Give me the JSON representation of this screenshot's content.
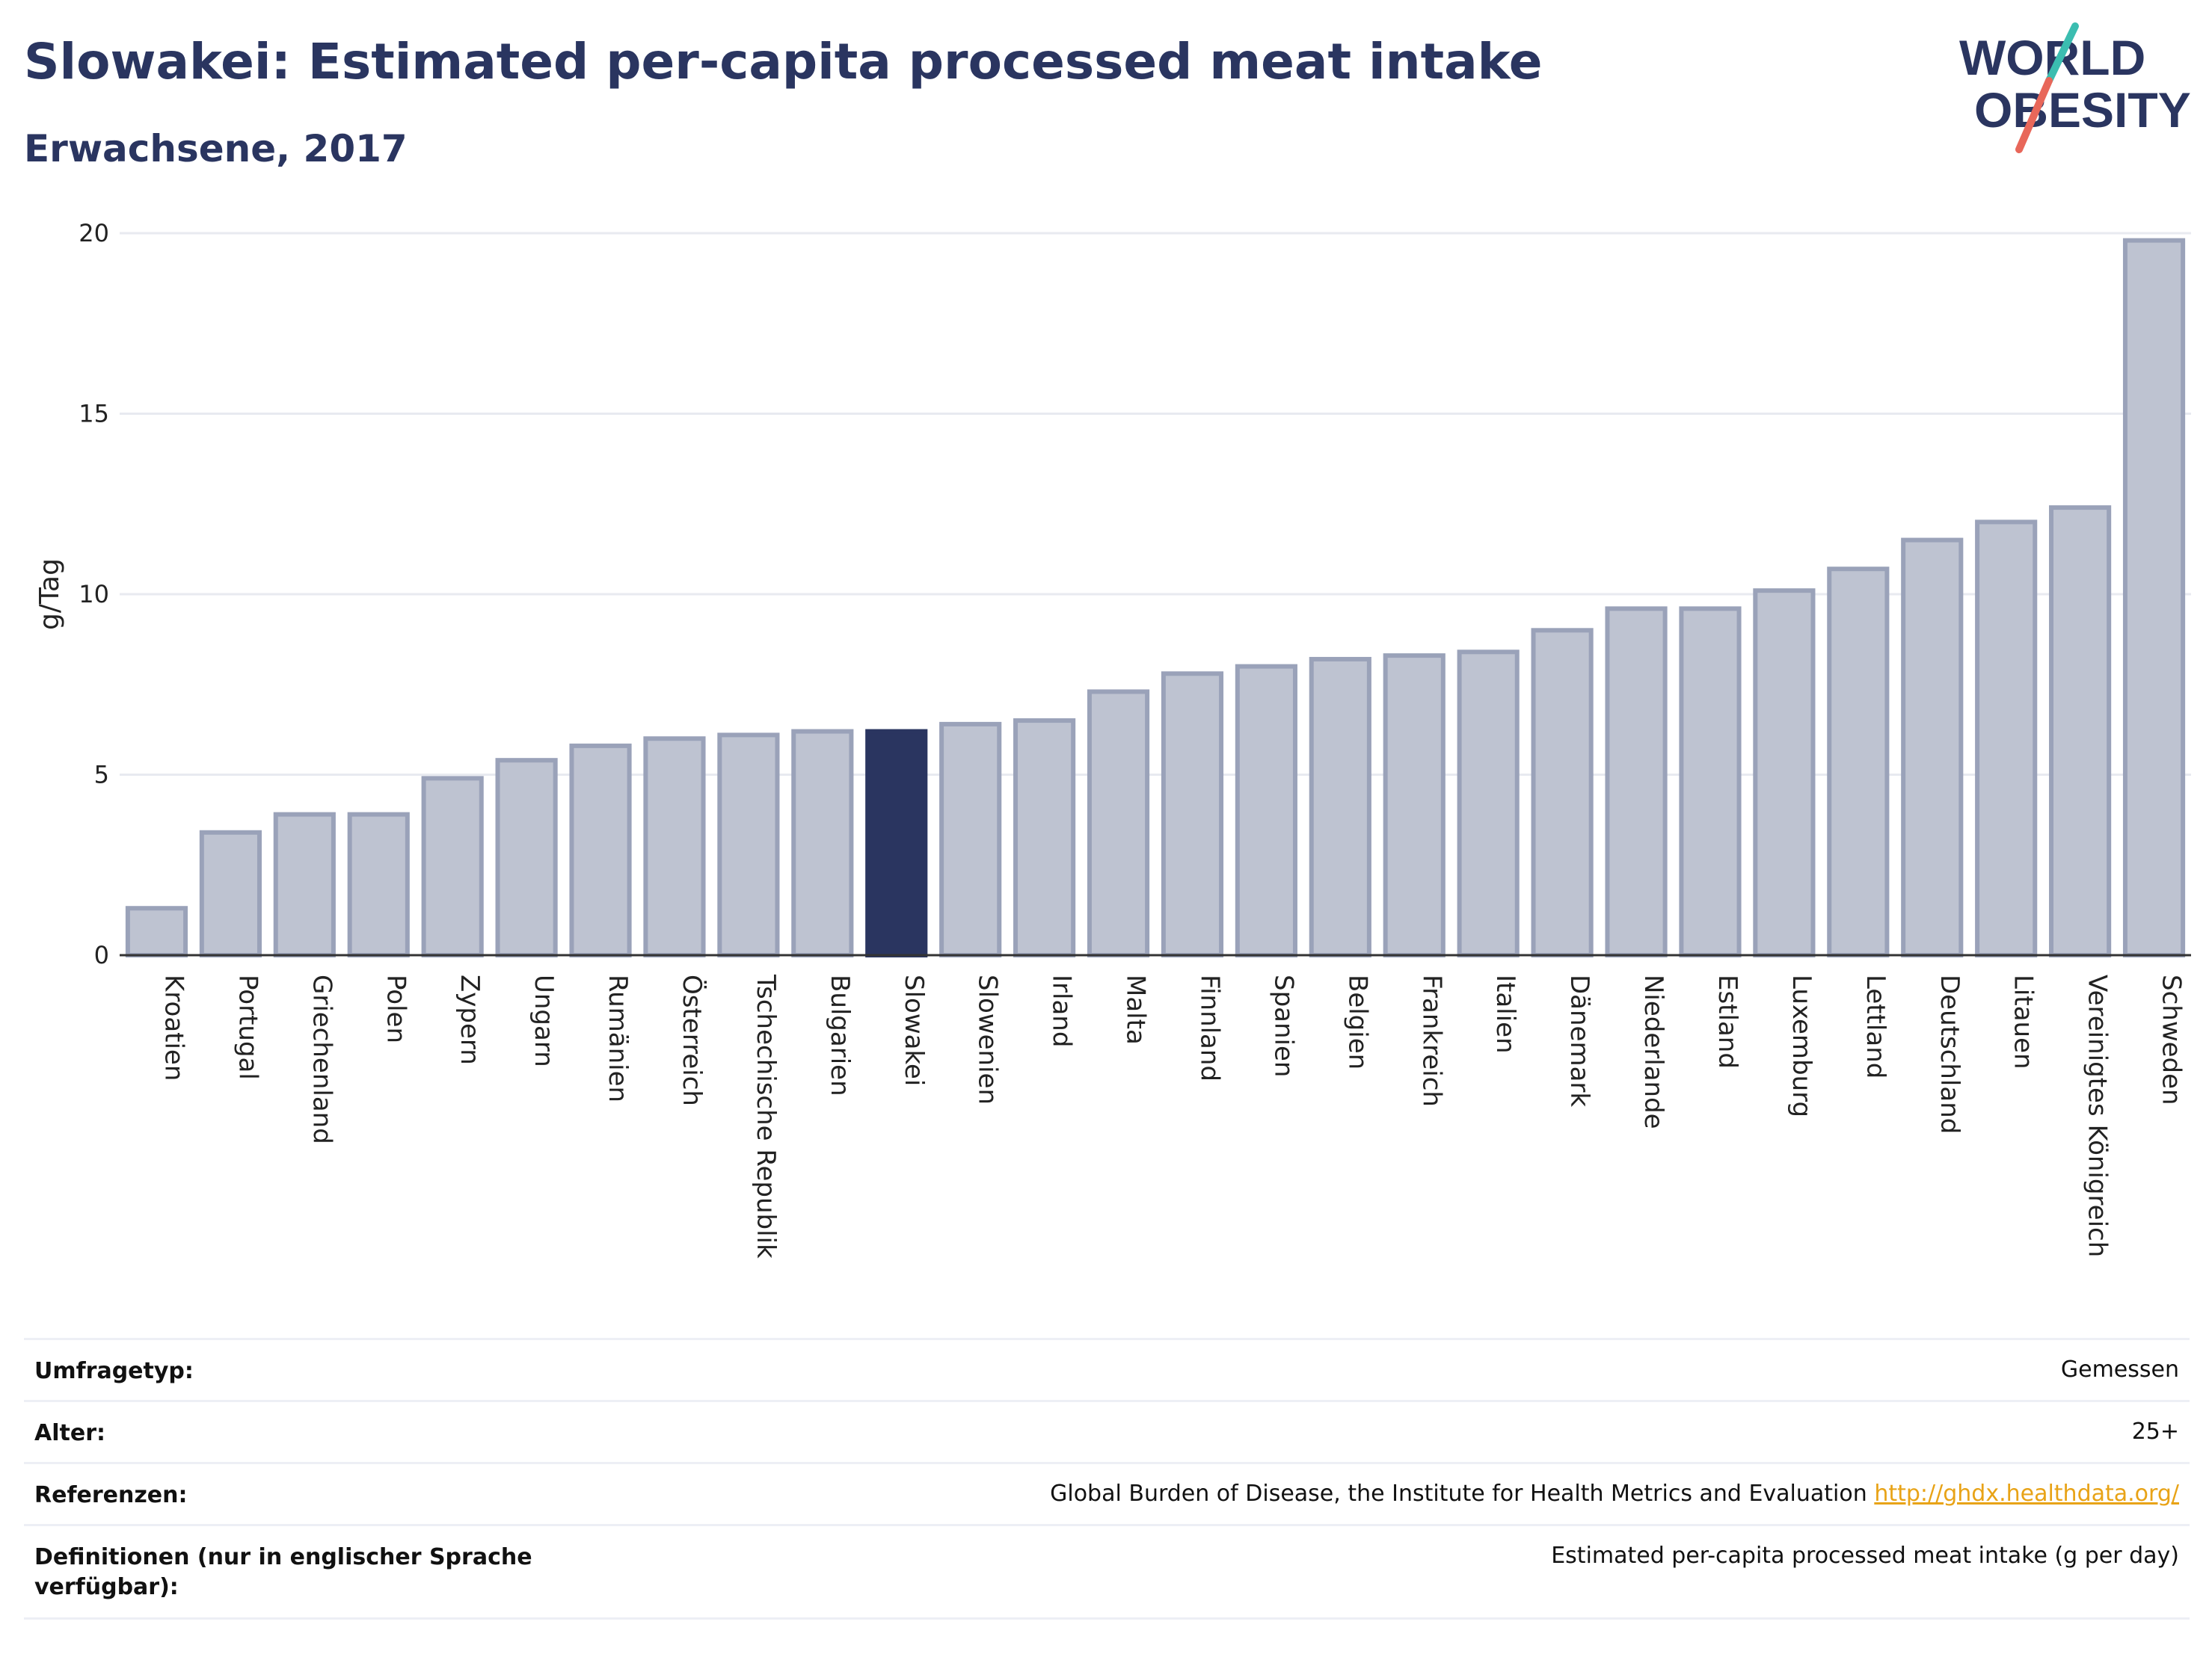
{
  "header": {
    "title": "Slowakei: Estimated per-capita processed meat intake",
    "subtitle": "Erwachsene, 2017"
  },
  "logo": {
    "line1": "WORLD",
    "line2": "OBESITY",
    "colors": {
      "text": "#2a3560",
      "slash_red": "#e8675a",
      "slash_teal": "#3bbdb0"
    }
  },
  "colors": {
    "bar_default": "#bec3d1",
    "bar_border": "#9aa2b9",
    "bar_highlight": "#2a3560",
    "grid": "#e8eaf0",
    "axis": "#333333"
  },
  "chart_data": {
    "type": "bar",
    "ylabel": "g/Tag",
    "ylim": [
      0,
      20
    ],
    "yticks": [
      0,
      5,
      10,
      15,
      20
    ],
    "grid": true,
    "highlight": "Slowakei",
    "categories": [
      "Kroatien",
      "Portugal",
      "Griechenland",
      "Polen",
      "Zypern",
      "Ungarn",
      "Rumänien",
      "Österreich",
      "Tschechische Republik",
      "Bulgarien",
      "Slowakei",
      "Slowenien",
      "Irland",
      "Malta",
      "Finnland",
      "Spanien",
      "Belgien",
      "Frankreich",
      "Italien",
      "Dänemark",
      "Niederlande",
      "Estland",
      "Luxemburg",
      "Lettland",
      "Deutschland",
      "Litauen",
      "Vereinigtes Königreich",
      "Schweden"
    ],
    "values": [
      1.3,
      3.4,
      3.9,
      3.9,
      4.9,
      5.4,
      5.8,
      6.0,
      6.1,
      6.2,
      6.2,
      6.4,
      6.5,
      7.3,
      7.8,
      8.0,
      8.2,
      8.3,
      8.4,
      9.0,
      9.6,
      9.6,
      10.1,
      10.7,
      11.5,
      12.0,
      12.4,
      19.8
    ]
  },
  "meta": {
    "rows": [
      {
        "label": "Umfragetyp:",
        "value": "Gemessen"
      },
      {
        "label": "Alter:",
        "value": "25+"
      },
      {
        "label": "Referenzen:",
        "value": "Global Burden of Disease, the Institute for Health Metrics and Evaluation",
        "link": "http://ghdx.healthdata.org/"
      },
      {
        "label": "Definitionen (nur in englischer Sprache verfügbar):",
        "value": "Estimated per-capita processed meat intake (g per day)"
      }
    ]
  }
}
